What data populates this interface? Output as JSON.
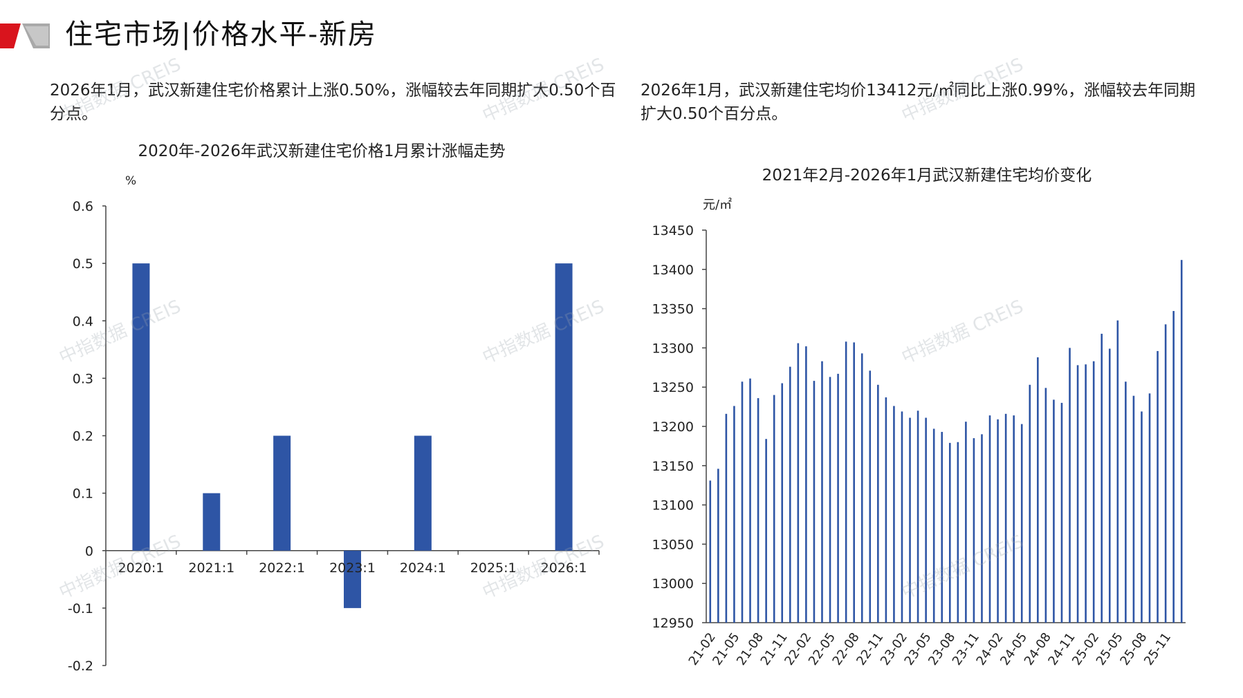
{
  "header": {
    "title": "住宅市场|价格水平-新房"
  },
  "descriptions": {
    "left": "2026年1月，武汉新建住宅价格累计上涨0.50%，涨幅较去年同期扩大0.50个百分点。",
    "right": "2026年1月，武汉新建住宅均价13412元/㎡同比上涨0.99%，涨幅较去年同期扩大0.50个百分点。"
  },
  "watermark_text": "中指数据 CREIS",
  "colors": {
    "bar": "#2e55a5",
    "logo_red": "#d9141d",
    "logo_grey": "#a9a9a9",
    "axis": "#444444"
  },
  "chart_data": [
    {
      "type": "bar",
      "title": "2020年-2026年武汉新建住宅价格1月累计涨幅走势",
      "ylabel": "%",
      "xlabel": "",
      "categories": [
        "2020:1",
        "2021:1",
        "2022:1",
        "2023:1",
        "2024:1",
        "2025:1",
        "2026:1"
      ],
      "values": [
        0.5,
        0.1,
        0.2,
        -0.1,
        0.2,
        0.0,
        0.5
      ],
      "ylim": [
        -0.2,
        0.6
      ],
      "yticks": [
        "0.6",
        "0.5",
        "0.4",
        "0.3",
        "0.2",
        "0.1",
        "0",
        "-0.1",
        "-0.2"
      ],
      "grid": false
    },
    {
      "type": "bar",
      "title": "2021年2月-2026年1月武汉新建住宅均价变化",
      "ylabel": "元/㎡",
      "xlabel": "",
      "x_tick_labels": [
        "21-02",
        "21-05",
        "21-08",
        "21-11",
        "22-02",
        "22-05",
        "22-08",
        "22-11",
        "23-02",
        "23-05",
        "23-08",
        "23-11",
        "24-02",
        "24-05",
        "24-08",
        "24-11",
        "25-02",
        "25-05",
        "25-08",
        "25-11"
      ],
      "categories": [
        "21-02",
        "21-03",
        "21-04",
        "21-05",
        "21-06",
        "21-07",
        "21-08",
        "21-09",
        "21-10",
        "21-11",
        "21-12",
        "22-01",
        "22-02",
        "22-03",
        "22-04",
        "22-05",
        "22-06",
        "22-07",
        "22-08",
        "22-09",
        "22-10",
        "22-11",
        "22-12",
        "23-01",
        "23-02",
        "23-03",
        "23-04",
        "23-05",
        "23-06",
        "23-07",
        "23-08",
        "23-09",
        "23-10",
        "23-11",
        "23-12",
        "24-01",
        "24-02",
        "24-03",
        "24-04",
        "24-05",
        "24-06",
        "24-07",
        "24-08",
        "24-09",
        "24-10",
        "24-11",
        "24-12",
        "25-01",
        "25-02",
        "25-03",
        "25-04",
        "25-05",
        "25-06",
        "25-07",
        "25-08",
        "25-09",
        "25-10",
        "25-11",
        "25-12",
        "26-01"
      ],
      "values": [
        13131,
        13146,
        13216,
        13226,
        13257,
        13261,
        13236,
        13184,
        13240,
        13255,
        13276,
        13306,
        13302,
        13258,
        13283,
        13263,
        13267,
        13308,
        13307,
        13293,
        13271,
        13253,
        13237,
        13226,
        13219,
        13211,
        13220,
        13211,
        13197,
        13193,
        13179,
        13180,
        13206,
        13185,
        13190,
        13214,
        13209,
        13216,
        13214,
        13203,
        13253,
        13288,
        13249,
        13234,
        13230,
        13300,
        13278,
        13279,
        13283,
        13318,
        13299,
        13335,
        13257,
        13239,
        13219,
        13242,
        13296,
        13330,
        13347,
        13412
      ],
      "ylim": [
        12950,
        13450
      ],
      "yticks": [
        "13450",
        "13400",
        "13350",
        "13300",
        "13250",
        "13200",
        "13150",
        "13100",
        "13050",
        "13000",
        "12950"
      ],
      "grid": false
    }
  ]
}
